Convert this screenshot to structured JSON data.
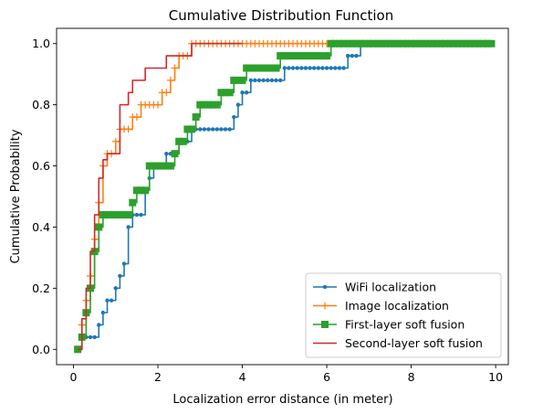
{
  "chart_data": {
    "type": "line",
    "title": "Cumulative Distribution Function",
    "xlabel": "Localization error distance (in meter)",
    "ylabel": "Cumulative Probability",
    "xlim": [
      -0.4,
      10.3
    ],
    "ylim": [
      -0.05,
      1.05
    ],
    "xticks": [
      0,
      2,
      4,
      6,
      8,
      10
    ],
    "yticks": [
      0.0,
      0.2,
      0.4,
      0.6,
      0.8,
      1.0
    ],
    "grid": false,
    "legend_position": "bottom-right",
    "series": [
      {
        "name": "WiFi localization",
        "color": "#1f77b4",
        "marker": "dot",
        "step": true,
        "x": [
          0.1,
          0.2,
          0.3,
          0.4,
          0.5,
          0.6,
          0.7,
          0.8,
          0.9,
          1.0,
          1.1,
          1.2,
          1.3,
          1.4,
          1.5,
          1.6,
          1.7,
          1.8,
          1.9,
          2.0,
          2.1,
          2.2,
          2.3,
          2.4,
          2.5,
          2.6,
          2.7,
          2.8,
          2.9,
          3.0,
          3.1,
          3.2,
          3.3,
          3.4,
          3.5,
          3.6,
          3.7,
          3.8,
          3.9,
          4.0,
          4.1,
          4.2,
          4.3,
          4.4,
          4.5,
          4.6,
          4.7,
          4.8,
          4.9,
          5.0,
          5.1,
          5.2,
          5.3,
          5.4,
          5.5,
          5.6,
          5.7,
          5.8,
          5.9,
          6.0,
          6.1,
          6.2,
          6.3,
          6.4,
          6.5,
          6.6,
          6.7,
          6.8,
          6.9,
          7.0
        ],
        "y": [
          0.0,
          0.04,
          0.04,
          0.04,
          0.04,
          0.08,
          0.12,
          0.16,
          0.16,
          0.2,
          0.24,
          0.28,
          0.4,
          0.44,
          0.44,
          0.44,
          0.52,
          0.56,
          0.6,
          0.6,
          0.6,
          0.64,
          0.64,
          0.64,
          0.68,
          0.68,
          0.68,
          0.72,
          0.72,
          0.72,
          0.72,
          0.72,
          0.72,
          0.72,
          0.72,
          0.72,
          0.72,
          0.76,
          0.8,
          0.84,
          0.84,
          0.88,
          0.88,
          0.88,
          0.88,
          0.88,
          0.88,
          0.88,
          0.88,
          0.92,
          0.92,
          0.92,
          0.92,
          0.92,
          0.92,
          0.92,
          0.92,
          0.92,
          0.92,
          0.92,
          0.92,
          0.92,
          0.92,
          0.92,
          0.96,
          0.96,
          0.96,
          1.0,
          1.0,
          1.0
        ]
      },
      {
        "name": "Image localization",
        "color": "#ff7f0e",
        "marker": "plus",
        "step": true,
        "x": [
          0.1,
          0.2,
          0.3,
          0.4,
          0.5,
          0.6,
          0.7,
          0.8,
          0.9,
          1.0,
          1.1,
          1.2,
          1.3,
          1.4,
          1.5,
          1.6,
          1.7,
          1.8,
          1.9,
          2.0,
          2.1,
          2.2,
          2.3,
          2.4,
          2.5,
          2.6,
          2.7,
          2.8,
          2.9,
          3.0,
          3.1,
          3.2,
          3.3,
          3.4,
          3.5,
          3.6,
          3.7,
          3.8,
          3.9,
          4.0,
          4.1,
          4.2,
          4.3,
          4.4,
          4.5,
          4.6,
          4.7,
          4.8,
          4.9,
          5.0,
          5.1,
          5.2,
          5.3,
          5.4,
          5.5,
          5.6,
          5.7,
          5.8,
          5.9,
          6.0
        ],
        "y": [
          0.0,
          0.08,
          0.16,
          0.24,
          0.36,
          0.48,
          0.6,
          0.64,
          0.64,
          0.68,
          0.72,
          0.72,
          0.72,
          0.76,
          0.76,
          0.8,
          0.8,
          0.8,
          0.8,
          0.8,
          0.84,
          0.84,
          0.88,
          0.92,
          0.96,
          0.96,
          0.96,
          1.0,
          1.0,
          1.0,
          1.0,
          1.0,
          1.0,
          1.0,
          1.0,
          1.0,
          1.0,
          1.0,
          1.0,
          1.0,
          1.0,
          1.0,
          1.0,
          1.0,
          1.0,
          1.0,
          1.0,
          1.0,
          1.0,
          1.0,
          1.0,
          1.0,
          1.0,
          1.0,
          1.0,
          1.0,
          1.0,
          1.0,
          1.0,
          1.0
        ]
      },
      {
        "name": "First-layer soft fusion",
        "color": "#2ca02c",
        "marker": "square",
        "step": true,
        "x": [
          0.1,
          0.2,
          0.3,
          0.4,
          0.5,
          0.6,
          0.7,
          0.8,
          0.9,
          1.0,
          1.1,
          1.2,
          1.3,
          1.4,
          1.5,
          1.6,
          1.7,
          1.8,
          1.9,
          2.0,
          2.1,
          2.2,
          2.3,
          2.4,
          2.5,
          2.6,
          2.7,
          2.8,
          2.9,
          3.0,
          3.1,
          3.2,
          3.3,
          3.4,
          3.5,
          3.6,
          3.7,
          3.8,
          3.9,
          4.0,
          4.1,
          4.2,
          4.3,
          4.4,
          4.5,
          4.6,
          4.7,
          4.8,
          4.9,
          5.0,
          5.1,
          5.2,
          5.3,
          5.4,
          5.5,
          5.6,
          5.7,
          5.8,
          5.9,
          6.0,
          6.1,
          6.2,
          6.3,
          6.4,
          6.5,
          6.6,
          6.7,
          6.8,
          6.9,
          7.0,
          7.1,
          7.2,
          7.3,
          7.4,
          7.5,
          7.6,
          7.7,
          7.8,
          7.9,
          8.0,
          8.1,
          8.2,
          8.3,
          8.4,
          8.5,
          8.6,
          8.7,
          8.8,
          8.9,
          9.0,
          9.1,
          9.2,
          9.3,
          9.4,
          9.5,
          9.6,
          9.7,
          9.8,
          9.9
        ],
        "y": [
          0.0,
          0.04,
          0.12,
          0.2,
          0.32,
          0.4,
          0.44,
          0.44,
          0.44,
          0.44,
          0.44,
          0.44,
          0.44,
          0.48,
          0.52,
          0.52,
          0.52,
          0.6,
          0.6,
          0.6,
          0.6,
          0.6,
          0.6,
          0.64,
          0.68,
          0.68,
          0.72,
          0.72,
          0.76,
          0.8,
          0.8,
          0.8,
          0.8,
          0.8,
          0.84,
          0.84,
          0.84,
          0.88,
          0.88,
          0.88,
          0.92,
          0.92,
          0.92,
          0.92,
          0.92,
          0.92,
          0.92,
          0.92,
          0.96,
          0.96,
          0.96,
          0.96,
          0.96,
          0.96,
          0.96,
          0.96,
          0.96,
          0.96,
          0.96,
          0.96,
          1.0,
          1.0,
          1.0,
          1.0,
          1.0,
          1.0,
          1.0,
          1.0,
          1.0,
          1.0,
          1.0,
          1.0,
          1.0,
          1.0,
          1.0,
          1.0,
          1.0,
          1.0,
          1.0,
          1.0,
          1.0,
          1.0,
          1.0,
          1.0,
          1.0,
          1.0,
          1.0,
          1.0,
          1.0,
          1.0,
          1.0,
          1.0,
          1.0,
          1.0,
          1.0,
          1.0,
          1.0,
          1.0,
          1.0
        ]
      },
      {
        "name": "Second-layer soft fusion",
        "color": "#d62728",
        "marker": "none",
        "step": true,
        "x": [
          0.1,
          0.2,
          0.3,
          0.4,
          0.5,
          0.6,
          0.7,
          0.8,
          0.9,
          1.0,
          1.1,
          1.2,
          1.3,
          1.4,
          1.5,
          1.6,
          1.7,
          1.8,
          1.9,
          2.0,
          2.1,
          2.2,
          2.3,
          2.4,
          2.5,
          2.6,
          2.7,
          2.8,
          2.9,
          3.0,
          3.1,
          3.2,
          3.3,
          3.4,
          3.5,
          3.6,
          3.7,
          3.8,
          3.9,
          4.0
        ],
        "y": [
          0.0,
          0.1,
          0.2,
          0.32,
          0.44,
          0.56,
          0.62,
          0.64,
          0.64,
          0.64,
          0.8,
          0.8,
          0.84,
          0.88,
          0.88,
          0.88,
          0.92,
          0.92,
          0.92,
          0.92,
          0.92,
          0.96,
          0.96,
          0.96,
          0.96,
          0.96,
          0.96,
          1.0,
          1.0,
          1.0,
          1.0,
          1.0,
          1.0,
          1.0,
          1.0,
          1.0,
          1.0,
          1.0,
          1.0,
          1.0
        ]
      }
    ]
  }
}
